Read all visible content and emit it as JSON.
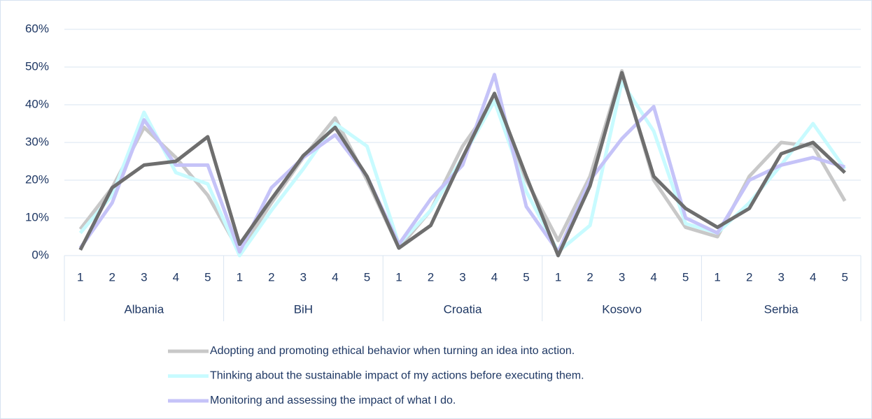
{
  "chart_data": {
    "type": "line",
    "categories": [
      "1",
      "2",
      "3",
      "4",
      "5",
      "1",
      "2",
      "3",
      "4",
      "5",
      "1",
      "2",
      "3",
      "4",
      "5",
      "1",
      "2",
      "3",
      "4",
      "5",
      "1",
      "2",
      "3",
      "4",
      "5"
    ],
    "category_groups": [
      "Albania",
      "BiH",
      "Croatia",
      "Kosovo",
      "Serbia"
    ],
    "ylim": [
      0,
      60
    ],
    "yticks": [
      {
        "value": 0,
        "label": "0%"
      },
      {
        "value": 10,
        "label": "10%"
      },
      {
        "value": 20,
        "label": "20%"
      },
      {
        "value": 30,
        "label": "30%"
      },
      {
        "value": 40,
        "label": "40%"
      },
      {
        "value": 50,
        "label": "50%"
      },
      {
        "value": 60,
        "label": "60%"
      }
    ],
    "grid": true,
    "legend": "bottom",
    "series": [
      {
        "name": "Adopting and promoting ethical behavior when turning an idea into action.",
        "color": "#c8c8c8",
        "values": [
          7,
          18,
          34,
          26,
          16,
          1,
          14,
          26,
          36.5,
          20,
          2,
          12,
          29,
          41,
          20,
          4,
          21,
          49,
          20,
          7.5,
          5,
          21,
          30,
          29,
          14.5
        ]
      },
      {
        "name": "Thinking about the sustainable impact of my actions before executing them.",
        "color": "#c8fbff",
        "values": [
          6,
          16,
          38,
          22,
          19,
          0,
          12,
          23,
          35,
          29,
          3,
          12,
          26,
          41,
          17,
          1,
          8,
          46,
          33,
          8.5,
          6,
          14,
          24,
          35,
          23
        ]
      },
      {
        "name": "Monitoring and assessing the impact of what I do.",
        "color": "#c5c3f8",
        "values": [
          2,
          14,
          36,
          24,
          24,
          1,
          18,
          26,
          32,
          21,
          3,
          15,
          24,
          48,
          13,
          1,
          20,
          31,
          39.5,
          10,
          6,
          20,
          24,
          26,
          23.5
        ]
      },
      {
        "color": "#6e6e6e",
        "values": [
          1.5,
          18,
          24,
          25,
          31.5,
          3,
          15,
          26.5,
          34,
          21,
          2,
          8,
          26,
          43,
          21,
          0,
          18.5,
          48.5,
          21,
          12.5,
          7.5,
          12.5,
          27,
          30,
          22
        ]
      }
    ]
  }
}
